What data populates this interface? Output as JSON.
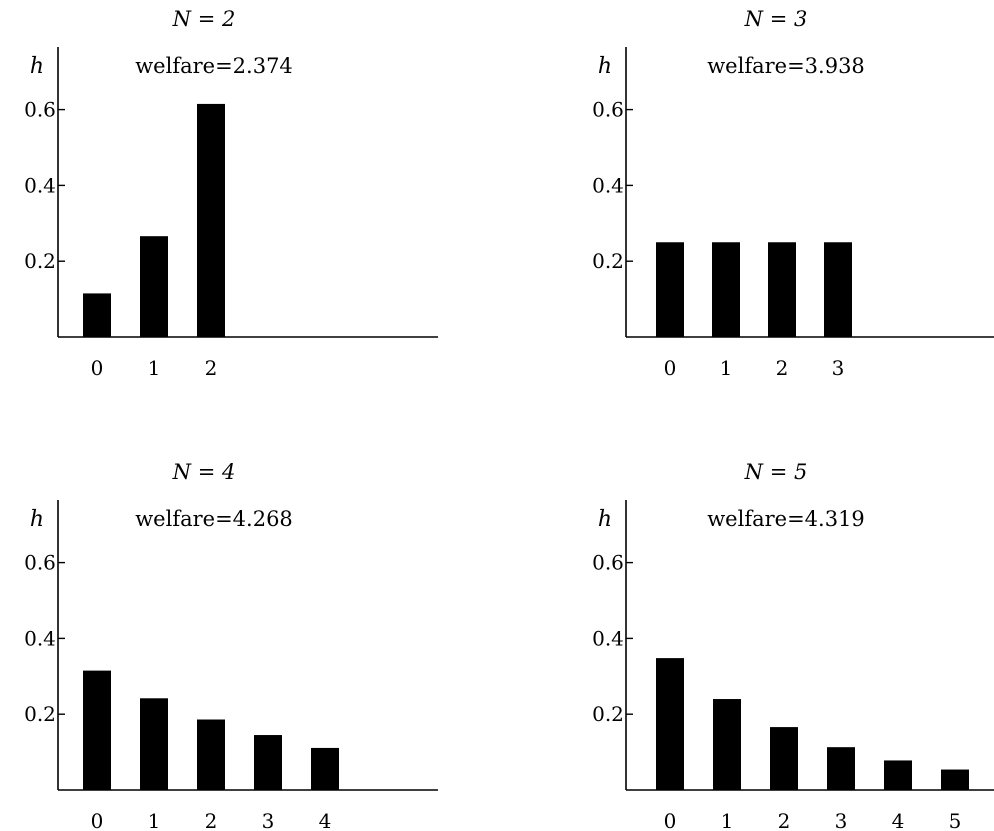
{
  "chart_data": [
    {
      "type": "bar",
      "title_n": "N = 2",
      "title_welfare": "welfare=2.374",
      "ylabel": "h",
      "ylim": [
        0,
        0.68
      ],
      "yticks": [
        "0.2",
        "0.4",
        "0.6"
      ],
      "categories": [
        "0",
        "1",
        "2"
      ],
      "values": [
        0.115,
        0.266,
        0.615
      ],
      "grid": false,
      "color": "#000000"
    },
    {
      "type": "bar",
      "title_n": "N = 3",
      "title_welfare": "welfare=3.938",
      "ylabel": "h",
      "ylim": [
        0,
        0.68
      ],
      "yticks": [
        "0.2",
        "0.4",
        "0.6"
      ],
      "categories": [
        "0",
        "1",
        "2",
        "3"
      ],
      "values": [
        0.25,
        0.25,
        0.25,
        0.25
      ],
      "grid": false,
      "color": "#000000"
    },
    {
      "type": "bar",
      "title_n": "N = 4",
      "title_welfare": "welfare=4.268",
      "ylabel": "h",
      "ylim": [
        0,
        0.68
      ],
      "yticks": [
        "0.2",
        "0.4",
        "0.6"
      ],
      "categories": [
        "0",
        "1",
        "2",
        "3",
        "4"
      ],
      "values": [
        0.315,
        0.242,
        0.186,
        0.145,
        0.111
      ],
      "grid": false,
      "color": "#000000"
    },
    {
      "type": "bar",
      "title_n": "N = 5",
      "title_welfare": "welfare=4.319",
      "ylabel": "h",
      "ylim": [
        0,
        0.68
      ],
      "yticks": [
        "0.2",
        "0.4",
        "0.6"
      ],
      "categories": [
        "0",
        "1",
        "2",
        "3",
        "4",
        "5"
      ],
      "values": [
        0.348,
        0.24,
        0.166,
        0.113,
        0.078,
        0.054
      ],
      "grid": false,
      "color": "#000000"
    }
  ]
}
